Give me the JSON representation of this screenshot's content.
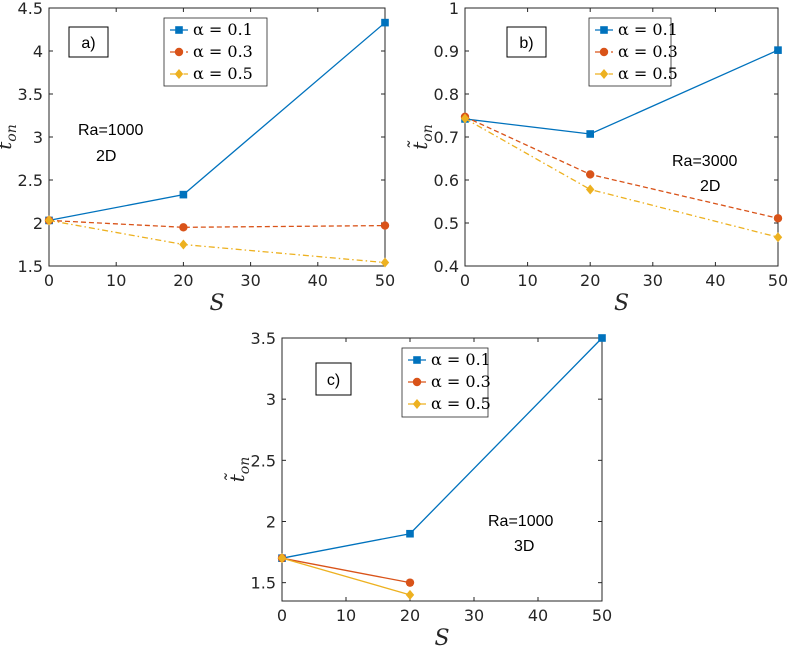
{
  "chart_data": [
    {
      "type": "line",
      "panel_label": "a)",
      "annotation": [
        "Ra=1000",
        "2D"
      ],
      "xlabel": "S",
      "ylabel": "t̃",
      "ylabel_sub": "on",
      "xlim": [
        0,
        50
      ],
      "ylim": [
        1.5,
        4.5
      ],
      "xticks": [
        "0",
        "10",
        "20",
        "30",
        "40",
        "50"
      ],
      "yticks": [
        "1.5",
        "2",
        "2.5",
        "3",
        "3.5",
        "4",
        "4.5"
      ],
      "legend_position": "top-center",
      "series": [
        {
          "name": "α = 0.1",
          "alpha": "0.1",
          "color": "#0072BD",
          "marker": "square",
          "dash": "solid",
          "x": [
            0,
            20,
            50
          ],
          "y": [
            2.03,
            2.33,
            4.33
          ]
        },
        {
          "name": "α = 0.3",
          "alpha": "0.3",
          "color": "#D95319",
          "marker": "circle",
          "dash": "dashed",
          "x": [
            0,
            20,
            50
          ],
          "y": [
            2.03,
            1.95,
            1.97
          ]
        },
        {
          "name": "α = 0.5",
          "alpha": "0.5",
          "color": "#EDB120",
          "marker": "diamond",
          "dash": "dashdot",
          "x": [
            0,
            20,
            50
          ],
          "y": [
            2.03,
            1.75,
            1.54
          ]
        }
      ]
    },
    {
      "type": "line",
      "panel_label": "b)",
      "annotation": [
        "Ra=3000",
        "2D"
      ],
      "xlabel": "S",
      "ylabel": "t̃",
      "ylabel_sub": "on",
      "xlim": [
        0,
        50
      ],
      "ylim": [
        0.4,
        1.0
      ],
      "xticks": [
        "0",
        "10",
        "20",
        "30",
        "40",
        "50"
      ],
      "yticks": [
        "0.4",
        "0.5",
        "0.6",
        "0.7",
        "0.8",
        "0.9",
        "1"
      ],
      "legend_position": "top-right",
      "series": [
        {
          "name": "α = 0.1",
          "alpha": "0.1",
          "color": "#0072BD",
          "marker": "square",
          "dash": "solid",
          "x": [
            0,
            20,
            50
          ],
          "y": [
            0.742,
            0.707,
            0.902
          ]
        },
        {
          "name": "α = 0.3",
          "alpha": "0.3",
          "color": "#D95319",
          "marker": "circle",
          "dash": "dashed",
          "x": [
            0,
            20,
            50
          ],
          "y": [
            0.747,
            0.613,
            0.511
          ]
        },
        {
          "name": "α = 0.5",
          "alpha": "0.5",
          "color": "#EDB120",
          "marker": "diamond",
          "dash": "dashdot",
          "x": [
            0,
            20,
            50
          ],
          "y": [
            0.743,
            0.578,
            0.467
          ]
        }
      ]
    },
    {
      "type": "line",
      "panel_label": "c)",
      "annotation": [
        "Ra=1000",
        "3D"
      ],
      "xlabel": "S",
      "ylabel": "t̃",
      "ylabel_sub": "on",
      "xlim": [
        0,
        50
      ],
      "ylim": [
        1.35,
        3.5
      ],
      "xticks": [
        "0",
        "10",
        "20",
        "30",
        "40",
        "50"
      ],
      "yticks": [
        "1.5",
        "2",
        "2.5",
        "3",
        "3.5"
      ],
      "legend_position": "top-center",
      "series": [
        {
          "name": "α = 0.1",
          "alpha": "0.1",
          "color": "#0072BD",
          "marker": "square",
          "dash": "solid",
          "x": [
            0,
            20,
            50
          ],
          "y": [
            1.7,
            1.9,
            3.5
          ]
        },
        {
          "name": "α = 0.3",
          "alpha": "0.3",
          "color": "#D95319",
          "marker": "circle",
          "dash": "solid",
          "x": [
            0,
            20
          ],
          "y": [
            1.7,
            1.5
          ]
        },
        {
          "name": "α = 0.5",
          "alpha": "0.5",
          "color": "#EDB120",
          "marker": "diamond",
          "dash": "solid",
          "x": [
            0,
            20
          ],
          "y": [
            1.7,
            1.4
          ]
        }
      ]
    }
  ]
}
